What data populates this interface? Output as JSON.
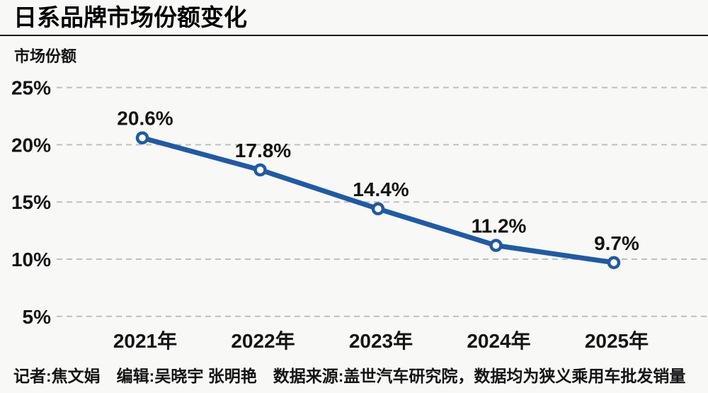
{
  "title": "日系品牌市场份额变化",
  "y_axis_title": "市场份额",
  "footer": "记者:焦文娟　编辑:吴晓宇 张明艳　数据来源:盖世汽车研究院，数据均为狭义乘用车批发销量",
  "colors": {
    "line": "#1f5aa6",
    "marker_fill": "#ffffff",
    "grid": "#bfbfbf",
    "text": "#141414",
    "background": "#f8f8f6"
  },
  "chart_data": {
    "type": "line",
    "title": "日系品牌市场份额变化",
    "ylabel": "市场份额",
    "xlabel": "",
    "categories": [
      "2021年",
      "2022年",
      "2023年",
      "2024年",
      "2025年"
    ],
    "values": [
      20.6,
      17.8,
      14.4,
      11.2,
      9.7
    ],
    "labels": [
      "20.6%",
      "17.8%",
      "14.4%",
      "11.2%",
      "9.7%"
    ],
    "series_name": "日系品牌市场份额",
    "y_ticks": [
      25,
      20,
      15,
      10,
      5
    ],
    "y_tick_labels": [
      "25%",
      "20%",
      "15%",
      "10%",
      "5%"
    ],
    "ylim": [
      5,
      25
    ],
    "grid": "horizontal-dashed",
    "legend": "none",
    "marker": "open-circle"
  }
}
